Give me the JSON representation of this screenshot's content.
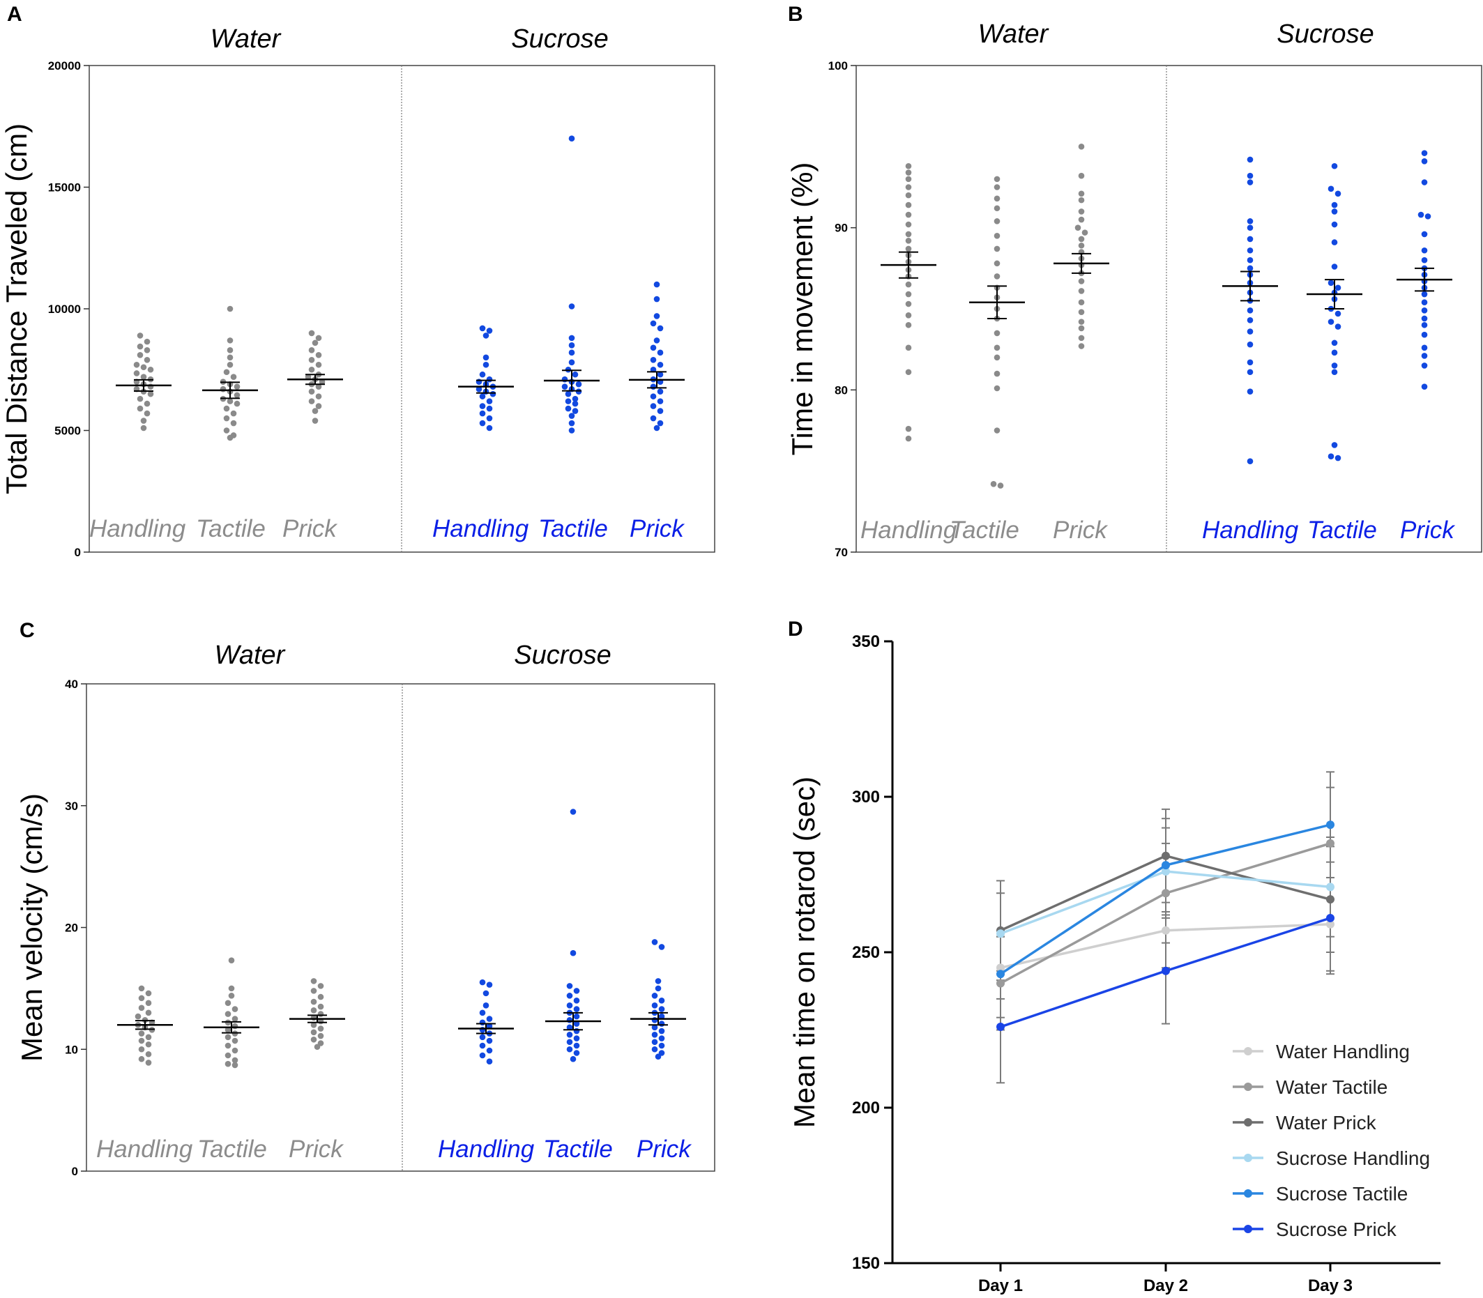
{
  "colors": {
    "water": "#8a8a8a",
    "sucrose": "#1249e0",
    "water_label": "#8c8c8c",
    "sucrose_label": "#0b1fe6"
  },
  "chart_data": [
    {
      "panel": "A",
      "type": "scatter",
      "ylabel": "Total Distance Traveled (cm)",
      "ylim": [
        0,
        20000
      ],
      "yticks": [
        0,
        5000,
        10000,
        15000,
        20000
      ],
      "group_headers": [
        "Water",
        "Sucrose"
      ],
      "categories": [
        "Handling",
        "Tactile",
        "Prick"
      ],
      "series": [
        {
          "name": "Water Handling",
          "group": "water",
          "mean": 6850,
          "sem": 230,
          "values": [
            8900,
            8650,
            8450,
            8300,
            8100,
            7900,
            7700,
            7600,
            7500,
            7350,
            7200,
            7100,
            7000,
            6900,
            6800,
            6700,
            6600,
            6500,
            6300,
            6100,
            5900,
            5700,
            5400,
            5100
          ]
        },
        {
          "name": "Water Tactile",
          "group": "water",
          "mean": 6650,
          "sem": 330,
          "values": [
            10000,
            8700,
            8300,
            8000,
            7700,
            7400,
            7200,
            7000,
            6900,
            6800,
            6700,
            6600,
            6450,
            6300,
            6200,
            6100,
            5900,
            5700,
            5500,
            5300,
            5000,
            4800,
            4700
          ]
        },
        {
          "name": "Water Prick",
          "group": "water",
          "mean": 7100,
          "sem": 200,
          "values": [
            9000,
            8800,
            8600,
            8300,
            8100,
            7900,
            7700,
            7500,
            7300,
            7200,
            7100,
            7000,
            6900,
            6800,
            6600,
            6400,
            6200,
            6000,
            5800,
            5400
          ]
        },
        {
          "name": "Sucrose Handling",
          "group": "sucrose",
          "mean": 6800,
          "sem": 260,
          "values": [
            9200,
            9100,
            8900,
            8000,
            7700,
            7300,
            7100,
            7000,
            6900,
            6800,
            6700,
            6600,
            6500,
            6400,
            6200,
            6000,
            5900,
            5700,
            5500,
            5300,
            5100
          ]
        },
        {
          "name": "Sucrose Tactile",
          "group": "sucrose",
          "mean": 7050,
          "sem": 420,
          "values": [
            17000,
            10100,
            8800,
            8500,
            8200,
            7800,
            7500,
            7300,
            7100,
            7000,
            6900,
            6800,
            6700,
            6600,
            6500,
            6300,
            6200,
            6100,
            5900,
            5800,
            5600,
            5300,
            5000
          ]
        },
        {
          "name": "Sucrose Prick",
          "group": "sucrose",
          "mean": 7080,
          "sem": 330,
          "values": [
            11000,
            10400,
            9700,
            9400,
            9200,
            8700,
            8400,
            8200,
            7900,
            7700,
            7500,
            7300,
            7100,
            7000,
            6800,
            6600,
            6400,
            6200,
            6000,
            5800,
            5500,
            5300,
            5100
          ]
        }
      ]
    },
    {
      "panel": "B",
      "type": "scatter",
      "ylabel": "Time in movement (%)",
      "ylim": [
        70,
        100
      ],
      "yticks": [
        70,
        80,
        90,
        100
      ],
      "group_headers": [
        "Water",
        "Sucrose"
      ],
      "categories": [
        "Handling",
        "Tactile",
        "Prick"
      ],
      "series": [
        {
          "name": "Water Handling",
          "group": "water",
          "mean": 87.7,
          "sem": 0.8,
          "values": [
            93.8,
            93.4,
            93.0,
            92.5,
            92.0,
            91.4,
            90.8,
            90.2,
            89.6,
            89.2,
            88.7,
            88.3,
            87.9,
            87.4,
            87.0,
            86.5,
            85.9,
            85.3,
            84.6,
            84.0,
            82.6,
            81.1,
            77.6,
            77.0
          ]
        },
        {
          "name": "Water Tactile",
          "group": "water",
          "mean": 85.4,
          "sem": 1.0,
          "values": [
            93.0,
            92.5,
            91.8,
            91.2,
            90.4,
            89.5,
            88.7,
            87.8,
            87.0,
            86.3,
            85.7,
            85.0,
            84.4,
            83.5,
            82.6,
            82.0,
            81.0,
            80.1,
            77.5,
            74.2,
            74.1
          ]
        },
        {
          "name": "Water Prick",
          "group": "water",
          "mean": 87.8,
          "sem": 0.6,
          "values": [
            95.0,
            93.2,
            92.1,
            91.7,
            91.0,
            90.5,
            90.0,
            89.7,
            89.3,
            88.9,
            88.5,
            88.1,
            87.7,
            87.2,
            86.7,
            86.1,
            85.4,
            84.8,
            84.2,
            83.8,
            83.2,
            82.7
          ]
        },
        {
          "name": "Sucrose Handling",
          "group": "sucrose",
          "mean": 86.4,
          "sem": 0.9,
          "values": [
            94.2,
            93.2,
            92.8,
            90.4,
            90.0,
            89.3,
            88.6,
            88.0,
            87.5,
            87.1,
            86.6,
            86.0,
            85.5,
            84.9,
            84.3,
            83.6,
            82.8,
            81.7,
            81.1,
            79.9,
            75.6
          ]
        },
        {
          "name": "Sucrose Tactile",
          "group": "sucrose",
          "mean": 85.9,
          "sem": 0.9,
          "values": [
            93.8,
            92.4,
            92.1,
            91.4,
            91.0,
            90.2,
            89.1,
            87.6,
            86.6,
            86.3,
            86.0,
            85.6,
            85.0,
            84.7,
            84.2,
            83.9,
            82.9,
            82.3,
            81.5,
            81.1,
            76.6,
            75.9,
            75.8
          ]
        },
        {
          "name": "Sucrose Prick",
          "group": "sucrose",
          "mean": 86.8,
          "sem": 0.7,
          "values": [
            94.6,
            94.1,
            92.8,
            90.8,
            90.7,
            89.6,
            88.6,
            88.0,
            87.5,
            87.1,
            86.7,
            86.3,
            85.9,
            85.4,
            84.9,
            84.4,
            84.0,
            83.4,
            82.6,
            82.1,
            81.5,
            80.2
          ]
        }
      ]
    },
    {
      "panel": "C",
      "type": "scatter",
      "ylabel": "Mean velocity (cm/s)",
      "ylim": [
        0,
        40
      ],
      "yticks": [
        0,
        10,
        20,
        30,
        40
      ],
      "group_headers": [
        "Water",
        "Sucrose"
      ],
      "categories": [
        "Handling",
        "Tactile",
        "Prick"
      ],
      "series": [
        {
          "name": "Water Handling",
          "group": "water",
          "mean": 12.0,
          "sem": 0.35,
          "values": [
            15.0,
            14.6,
            14.2,
            13.8,
            13.4,
            13.0,
            12.7,
            12.4,
            12.2,
            12.0,
            11.8,
            11.6,
            11.3,
            11.0,
            10.7,
            10.4,
            10.0,
            9.6,
            9.2,
            8.9
          ]
        },
        {
          "name": "Water Tactile",
          "group": "water",
          "mean": 11.8,
          "sem": 0.45,
          "values": [
            17.3,
            15.0,
            14.4,
            13.8,
            13.3,
            12.9,
            12.5,
            12.2,
            11.9,
            11.6,
            11.3,
            11.0,
            10.7,
            10.3,
            9.9,
            9.5,
            9.1,
            8.8,
            8.7
          ]
        },
        {
          "name": "Water Prick",
          "group": "water",
          "mean": 12.5,
          "sem": 0.3,
          "values": [
            15.6,
            15.2,
            14.8,
            14.3,
            13.9,
            13.5,
            13.2,
            12.9,
            12.6,
            12.3,
            12.0,
            11.7,
            11.4,
            11.1,
            10.8,
            10.5,
            10.2
          ]
        },
        {
          "name": "Sucrose Handling",
          "group": "sucrose",
          "mean": 11.7,
          "sem": 0.4,
          "values": [
            15.5,
            15.3,
            14.6,
            13.6,
            13.0,
            12.5,
            12.2,
            11.9,
            11.6,
            11.3,
            11.0,
            10.7,
            10.3,
            9.9,
            9.5,
            9.0
          ]
        },
        {
          "name": "Sucrose Tactile",
          "group": "sucrose",
          "mean": 12.3,
          "sem": 0.7,
          "values": [
            29.5,
            17.9,
            15.2,
            14.8,
            14.4,
            14.0,
            13.6,
            13.3,
            13.0,
            12.7,
            12.4,
            12.1,
            11.8,
            11.5,
            11.2,
            10.9,
            10.6,
            10.3,
            10.0,
            9.7,
            9.2
          ]
        },
        {
          "name": "Sucrose Prick",
          "group": "sucrose",
          "mean": 12.5,
          "sem": 0.5,
          "values": [
            18.8,
            18.4,
            15.6,
            15.0,
            14.4,
            14.0,
            13.6,
            13.3,
            13.0,
            12.7,
            12.4,
            12.1,
            11.8,
            11.5,
            11.2,
            10.9,
            10.6,
            10.3,
            10.0,
            9.7,
            9.4
          ]
        }
      ]
    },
    {
      "panel": "D",
      "type": "line",
      "ylabel": "Mean time on rotarod (sec)",
      "xlabel": "",
      "ylim": [
        150,
        350
      ],
      "yticks": [
        150,
        200,
        250,
        300,
        350
      ],
      "categories": [
        "Day 1",
        "Day 2",
        "Day 3"
      ],
      "series": [
        {
          "name": "Water Handling",
          "color": "#cfcfcf",
          "values": [
            245,
            257,
            259
          ],
          "sem": [
            10,
            12,
            15
          ]
        },
        {
          "name": "Water Tactile",
          "color": "#9a9a9a",
          "values": [
            240,
            269,
            285
          ],
          "sem": [
            15,
            16,
            18
          ]
        },
        {
          "name": "Water Prick",
          "color": "#6e6e6e",
          "values": [
            257,
            281,
            267
          ],
          "sem": [
            16,
            15,
            17
          ]
        },
        {
          "name": "Sucrose Handling",
          "color": "#a8d8f0",
          "values": [
            256,
            276,
            271
          ],
          "sem": [
            13,
            14,
            16
          ]
        },
        {
          "name": "Sucrose Tactile",
          "color": "#2a86e0",
          "values": [
            243,
            278,
            291
          ],
          "sem": [
            14,
            15,
            17
          ]
        },
        {
          "name": "Sucrose Prick",
          "color": "#1a44e6",
          "values": [
            226,
            244,
            261
          ],
          "sem": [
            18,
            17,
            18
          ]
        }
      ]
    }
  ]
}
